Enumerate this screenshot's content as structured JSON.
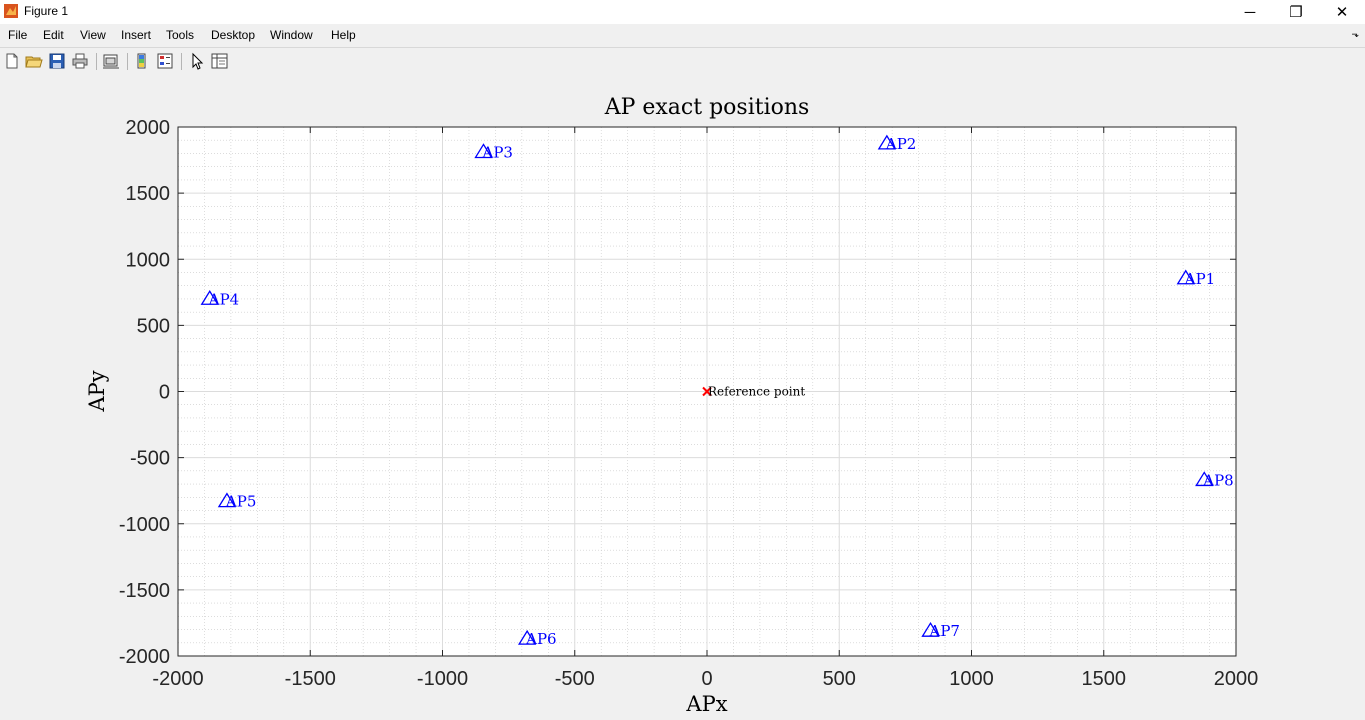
{
  "window": {
    "title": "Figure 1",
    "controls": {
      "minimize": "─",
      "maximize": "❐",
      "close": "✕"
    }
  },
  "menu": [
    "File",
    "Edit",
    "View",
    "Insert",
    "Tools",
    "Desktop",
    "Window",
    "Help"
  ],
  "toolbar": {
    "buttons": [
      "new-figure-icon",
      "open-file-icon",
      "save-icon",
      "print-icon",
      "link-plot-icon",
      "insert-colorbar-icon",
      "insert-legend-icon",
      "edit-plot-icon",
      "property-inspector-icon"
    ]
  },
  "chart_data": {
    "type": "scatter",
    "title": "AP exact positions",
    "xlabel": "APx",
    "ylabel": "APy",
    "xlim": [
      -2000,
      2000
    ],
    "ylim": [
      -2000,
      2000
    ],
    "xticks": [
      -2000,
      -1500,
      -1000,
      -500,
      0,
      500,
      1000,
      1500,
      2000
    ],
    "yticks": [
      -2000,
      -1500,
      -1000,
      -500,
      0,
      500,
      1000,
      1500,
      2000
    ],
    "grid": true,
    "minor_grid": true,
    "series": [
      {
        "marker": "triangle",
        "color": "#0000ff",
        "points": [
          {
            "label": "AP1",
            "x": 1810,
            "y": 860
          },
          {
            "label": "AP2",
            "x": 680,
            "y": 1880
          },
          {
            "label": "AP3",
            "x": -845,
            "y": 1815
          },
          {
            "label": "AP4",
            "x": -1880,
            "y": 705
          },
          {
            "label": "AP5",
            "x": -1815,
            "y": -825
          },
          {
            "label": "AP6",
            "x": -680,
            "y": -1865
          },
          {
            "label": "AP7",
            "x": 845,
            "y": -1805
          },
          {
            "label": "AP8",
            "x": 1880,
            "y": -665
          }
        ]
      },
      {
        "marker": "x",
        "color": "#ff0000",
        "points": [
          {
            "label": "Reference point",
            "x": 0,
            "y": 0
          }
        ]
      }
    ]
  }
}
